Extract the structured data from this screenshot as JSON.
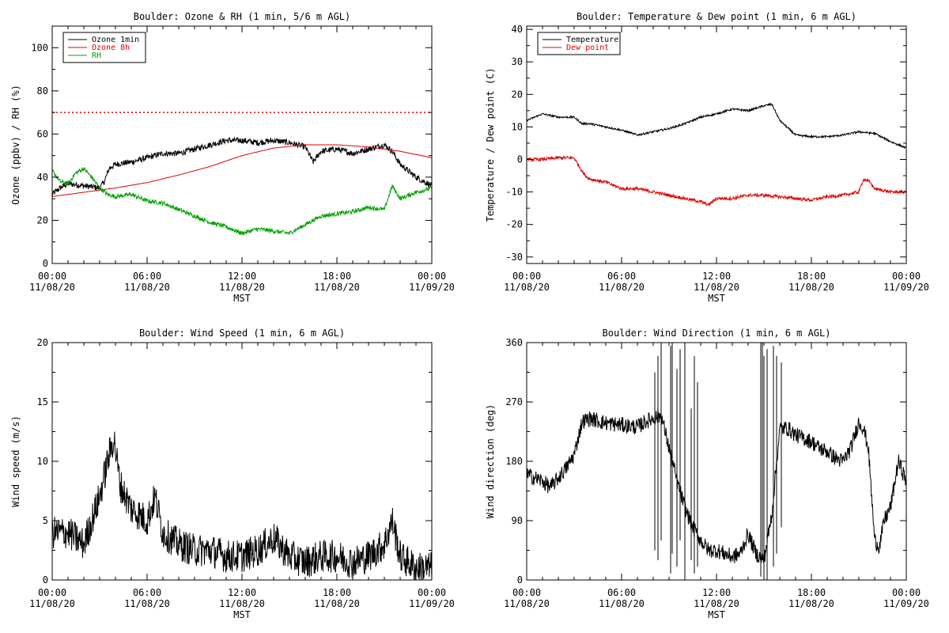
{
  "chart_data": [
    {
      "type": "line",
      "title": "Boulder: Ozone & RH (1 min, 5/6 m AGL)",
      "ylabel": "Ozone (ppbv) / RH (%)",
      "xlabel": "MST",
      "xlim": [
        0,
        24
      ],
      "ylim": [
        0,
        110
      ],
      "x_ticks": [
        {
          "x": 0,
          "time": "00:00",
          "date": "11/08/20"
        },
        {
          "x": 6,
          "time": "06:00",
          "date": "11/08/20"
        },
        {
          "x": 12,
          "time": "12:00",
          "date": "11/08/20"
        },
        {
          "x": 18,
          "time": "18:00",
          "date": "11/08/20"
        },
        {
          "x": 24,
          "time": "00:00",
          "date": "11/09/20"
        }
      ],
      "y_ticks": [
        0,
        20,
        40,
        60,
        80,
        100
      ],
      "reference_line": {
        "y": 70,
        "color": "#e00000",
        "style": "dotted"
      },
      "legend": "top-left",
      "series": [
        {
          "name": "Ozone 1min",
          "color": "#000000",
          "noise": 1.4,
          "x": [
            0,
            0.5,
            1,
            2,
            3,
            3.3,
            3.6,
            4,
            5,
            6,
            7,
            8,
            9,
            10,
            11,
            12,
            13,
            14,
            15,
            16,
            16.5,
            17,
            18,
            19,
            20,
            21,
            21.5,
            22,
            23,
            24
          ],
          "y": [
            32,
            35,
            37,
            36,
            35,
            38,
            44,
            46,
            47,
            49,
            51,
            51,
            53,
            55,
            57,
            57,
            56,
            57,
            56,
            54,
            47,
            52,
            53,
            51,
            53,
            55,
            52,
            46,
            40,
            36
          ]
        },
        {
          "name": "Ozone 8h",
          "color": "#e00000",
          "noise": 0,
          "x": [
            0,
            2,
            4,
            6,
            8,
            10,
            12,
            14,
            16,
            18,
            20,
            22,
            24
          ],
          "y": [
            31,
            33,
            35,
            37.5,
            41,
            45,
            50,
            53.5,
            55,
            55,
            54,
            52,
            49
          ]
        },
        {
          "name": "RH",
          "color": "#00a000",
          "noise": 1.0,
          "x": [
            0,
            0.5,
            1,
            1.5,
            2,
            2.5,
            3,
            3.5,
            4,
            5,
            6,
            7,
            8,
            9,
            10,
            11,
            12,
            13,
            14,
            15,
            16,
            17,
            18,
            19,
            20,
            21,
            21.5,
            22,
            23,
            24
          ],
          "y": [
            43,
            38,
            37,
            42,
            44,
            40,
            35,
            32,
            31,
            32,
            29,
            28,
            25,
            22,
            19,
            17,
            14,
            16,
            15,
            14,
            18,
            22,
            23,
            24,
            26,
            25,
            36,
            30,
            33,
            35
          ]
        }
      ]
    },
    {
      "type": "line",
      "title": "Boulder: Temperature & Dew point (1 min, 6 m AGL)",
      "ylabel": "Temperature / Dew point (C)",
      "xlabel": "MST",
      "xlim": [
        0,
        24
      ],
      "ylim": [
        -32,
        41
      ],
      "x_ticks": [
        {
          "x": 0,
          "time": "00:00",
          "date": "11/08/20"
        },
        {
          "x": 6,
          "time": "06:00",
          "date": "11/08/20"
        },
        {
          "x": 12,
          "time": "12:00",
          "date": "11/08/20"
        },
        {
          "x": 18,
          "time": "18:00",
          "date": "11/08/20"
        },
        {
          "x": 24,
          "time": "00:00",
          "date": "11/09/20"
        }
      ],
      "y_ticks": [
        -30,
        -20,
        -10,
        0,
        10,
        20,
        30,
        40
      ],
      "legend": "top-left",
      "series": [
        {
          "name": "Temperature",
          "color": "#000000",
          "noise": 0.3,
          "x": [
            0,
            1,
            2,
            3,
            3.5,
            4,
            5,
            6,
            7,
            8,
            9,
            10,
            11,
            12,
            13,
            14,
            15,
            15.5,
            16,
            17,
            18,
            19,
            20,
            21,
            22,
            23,
            24
          ],
          "y": [
            12,
            14,
            13,
            13,
            11,
            11,
            10,
            9,
            7.5,
            8.5,
            9.5,
            11,
            13,
            14,
            15.5,
            15,
            16.5,
            17,
            12,
            7.5,
            7,
            7,
            7.5,
            8.5,
            8,
            5.5,
            3.5
          ]
        },
        {
          "name": "Dew point",
          "color": "#e00000",
          "noise": 0.5,
          "x": [
            0,
            1,
            2,
            3,
            3.3,
            3.7,
            4,
            5,
            6,
            7,
            8,
            9,
            10,
            11,
            11.5,
            12,
            13,
            14,
            15,
            16,
            17,
            18,
            19,
            20,
            21,
            21.3,
            21.7,
            22,
            23,
            24
          ],
          "y": [
            0,
            0,
            0.5,
            0.5,
            -2,
            -5,
            -6,
            -7,
            -9,
            -9,
            -10,
            -11,
            -12,
            -13,
            -14,
            -12,
            -12,
            -11,
            -11,
            -11.5,
            -12,
            -12.5,
            -11.5,
            -11,
            -10,
            -6,
            -7,
            -9,
            -10,
            -10
          ]
        }
      ]
    },
    {
      "type": "line",
      "title": "Boulder: Wind Speed (1 min, 6 m AGL)",
      "ylabel": "Wind speed (m/s)",
      "xlabel": "MST",
      "xlim": [
        0,
        24
      ],
      "ylim": [
        0,
        20
      ],
      "x_ticks": [
        {
          "x": 0,
          "time": "00:00",
          "date": "11/08/20"
        },
        {
          "x": 6,
          "time": "06:00",
          "date": "11/08/20"
        },
        {
          "x": 12,
          "time": "12:00",
          "date": "11/08/20"
        },
        {
          "x": 18,
          "time": "18:00",
          "date": "11/08/20"
        },
        {
          "x": 24,
          "time": "00:00",
          "date": "11/09/20"
        }
      ],
      "y_ticks": [
        0,
        5,
        10,
        15,
        20
      ],
      "series": [
        {
          "name": "",
          "color": "#000000",
          "noise": 1.4,
          "x": [
            0,
            1,
            2,
            3,
            3.5,
            3.9,
            4.3,
            5,
            6,
            6.5,
            7,
            8,
            9,
            10,
            11,
            12,
            13,
            14,
            15,
            16,
            17,
            18,
            19,
            20,
            21,
            21.5,
            22,
            23,
            24
          ],
          "y": [
            4,
            4,
            3,
            7,
            10,
            12,
            8,
            6,
            5,
            7,
            4,
            3,
            2.5,
            2.5,
            2,
            2,
            2.5,
            3.5,
            2,
            1.5,
            2,
            2,
            1.5,
            2,
            3,
            5,
            2,
            1,
            1
          ]
        }
      ]
    },
    {
      "type": "line",
      "title": "Boulder: Wind Direction (1 min, 6 m AGL)",
      "ylabel": "Wind direction (deg)",
      "xlabel": "MST",
      "xlim": [
        0,
        24
      ],
      "ylim": [
        0,
        360
      ],
      "x_ticks": [
        {
          "x": 0,
          "time": "00:00",
          "date": "11/08/20"
        },
        {
          "x": 6,
          "time": "06:00",
          "date": "11/08/20"
        },
        {
          "x": 12,
          "time": "12:00",
          "date": "11/08/20"
        },
        {
          "x": 18,
          "time": "18:00",
          "date": "11/08/20"
        },
        {
          "x": 24,
          "time": "00:00",
          "date": "11/09/20"
        }
      ],
      "y_ticks": [
        0,
        90,
        180,
        270,
        360
      ],
      "series": [
        {
          "name": "",
          "color": "#000000",
          "noise": 12,
          "x": [
            0,
            0.5,
            1,
            1.5,
            2,
            2.5,
            3,
            3.5,
            4,
            5,
            6,
            7,
            7.5,
            8,
            8.5,
            9,
            9.5,
            10,
            10.5,
            11,
            11.5,
            12,
            12.5,
            13,
            13.5,
            14,
            14.5,
            15,
            15.5,
            16,
            16.5,
            17,
            17.5,
            18,
            18.5,
            19,
            19.5,
            20,
            20.5,
            21,
            21.3,
            21.6,
            22,
            22.3,
            22.6,
            23,
            23.5,
            24
          ],
          "y": [
            160,
            155,
            150,
            140,
            155,
            170,
            190,
            240,
            245,
            238,
            235,
            232,
            240,
            245,
            250,
            200,
            150,
            110,
            80,
            60,
            45,
            45,
            40,
            35,
            40,
            70,
            40,
            30,
            100,
            230,
            230,
            220,
            215,
            210,
            200,
            195,
            185,
            180,
            200,
            240,
            230,
            200,
            60,
            50,
            90,
            110,
            180,
            150
          ]
        },
        {
          "name": "",
          "color": "#000000",
          "noise": 0,
          "spikes": true,
          "x": [
            8.1,
            8.3,
            8.5,
            9.1,
            9.2,
            9.5,
            9.7,
            10.0,
            10.4,
            10.6,
            10.8,
            14.8,
            14.9,
            15.0,
            15.2,
            15.6,
            15.8,
            16.1
          ],
          "y": [
            [
              45,
              315
            ],
            [
              30,
              340
            ],
            [
              60,
              360
            ],
            [
              10,
              355
            ],
            [
              40,
              360
            ],
            [
              20,
              320
            ],
            [
              60,
              350
            ],
            [
              0,
              360
            ],
            [
              30,
              260
            ],
            [
              10,
              340
            ],
            [
              20,
              300
            ],
            [
              5,
              360
            ],
            [
              30,
              360
            ],
            [
              0,
              340
            ],
            [
              0,
              350
            ],
            [
              20,
              355
            ],
            [
              40,
              340
            ],
            [
              80,
              330
            ]
          ]
        }
      ]
    }
  ]
}
